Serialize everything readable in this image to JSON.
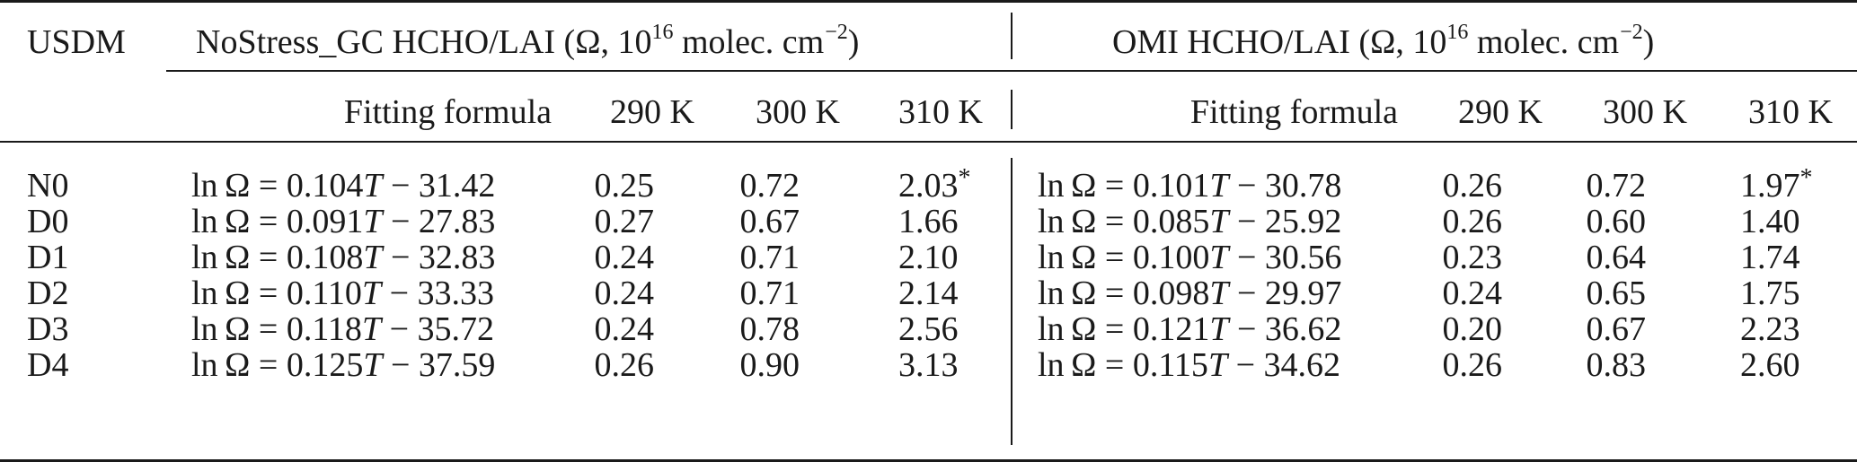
{
  "table": {
    "row_header": "USDM",
    "groups": [
      {
        "name": "NoStress_GC HCHO/LAI (Ω, 10",
        "exp": "16",
        "unit": " molec. cm",
        "unit_exp": "−2",
        "close": ")"
      },
      {
        "name": "OMI HCHO/LAI (Ω, 10",
        "exp": "16",
        "unit": " molec. cm",
        "unit_exp": "−2",
        "close": ")"
      }
    ],
    "subheaders": [
      "Fitting formula",
      "290 K",
      "300 K",
      "310 K"
    ],
    "rows": [
      {
        "label": "N0",
        "left": {
          "coef": "0.104",
          "const": "31.42",
          "v290": "0.25",
          "v300": "0.72",
          "v310": "2.03",
          "star": "*"
        },
        "right": {
          "coef": "0.101",
          "const": "30.78",
          "v290": "0.26",
          "v300": "0.72",
          "v310": "1.97",
          "star": "*"
        }
      },
      {
        "label": "D0",
        "left": {
          "coef": "0.091",
          "const": "27.83",
          "v290": "0.27",
          "v300": "0.67",
          "v310": "1.66",
          "star": ""
        },
        "right": {
          "coef": "0.085",
          "const": "25.92",
          "v290": "0.26",
          "v300": "0.60",
          "v310": "1.40",
          "star": ""
        }
      },
      {
        "label": "D1",
        "left": {
          "coef": "0.108",
          "const": "32.83",
          "v290": "0.24",
          "v300": "0.71",
          "v310": "2.10",
          "star": ""
        },
        "right": {
          "coef": "0.100",
          "const": "30.56",
          "v290": "0.23",
          "v300": "0.64",
          "v310": "1.74",
          "star": ""
        }
      },
      {
        "label": "D2",
        "left": {
          "coef": "0.110",
          "const": "33.33",
          "v290": "0.24",
          "v300": "0.71",
          "v310": "2.14",
          "star": ""
        },
        "right": {
          "coef": "0.098",
          "const": "29.97",
          "v290": "0.24",
          "v300": "0.65",
          "v310": "1.75",
          "star": ""
        }
      },
      {
        "label": "D3",
        "left": {
          "coef": "0.118",
          "const": "35.72",
          "v290": "0.24",
          "v300": "0.78",
          "v310": "2.56",
          "star": ""
        },
        "right": {
          "coef": "0.121",
          "const": "36.62",
          "v290": "0.20",
          "v300": "0.67",
          "v310": "2.23",
          "star": ""
        }
      },
      {
        "label": "D4",
        "left": {
          "coef": "0.125",
          "const": "37.59",
          "v290": "0.26",
          "v300": "0.90",
          "v310": "3.13",
          "star": ""
        },
        "right": {
          "coef": "0.115",
          "const": "34.62",
          "v290": "0.26",
          "v300": "0.83",
          "v310": "2.60",
          "star": ""
        }
      }
    ]
  }
}
